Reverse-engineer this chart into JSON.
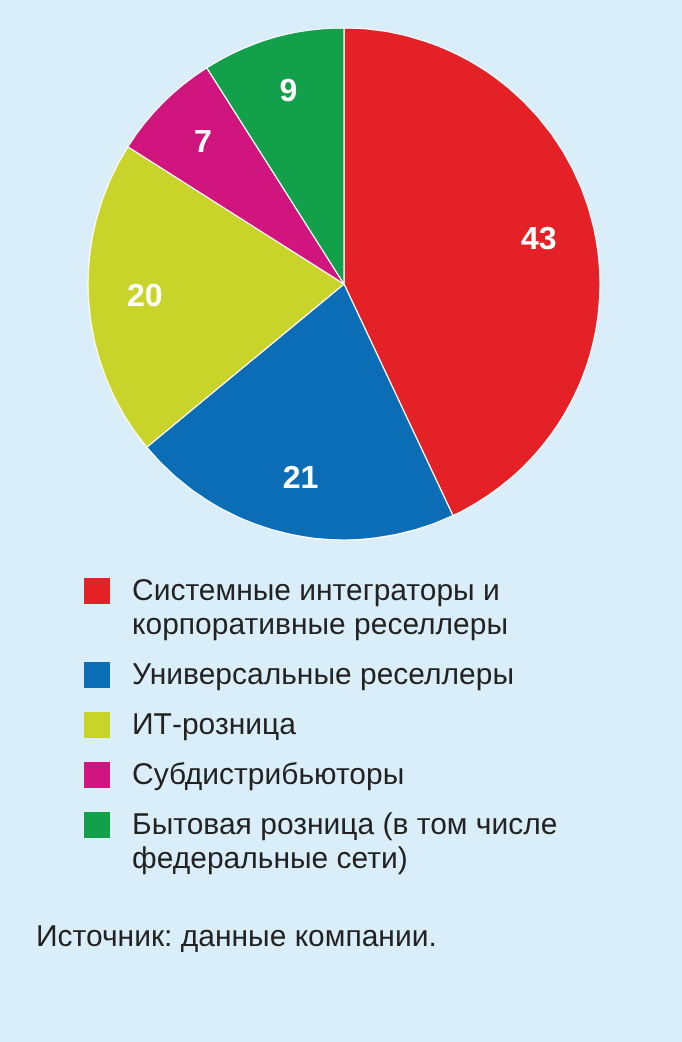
{
  "chart_data": {
    "type": "pie",
    "categories": [
      "Системные интеграторы и корпоративные реселлеры",
      "Универсальные реселлеры",
      "ИТ-розница",
      "Субдистрибьюторы",
      "Бытовая розница (в том числе федеральные сети)"
    ],
    "values": [
      43,
      21,
      20,
      7,
      9
    ],
    "colors": [
      "#e42127",
      "#0b6db5",
      "#c9d42b",
      "#d1157f",
      "#12a04b"
    ],
    "data_labels": true,
    "legend": "bottom",
    "annotations": [
      "Источник: данные компании."
    ]
  }
}
